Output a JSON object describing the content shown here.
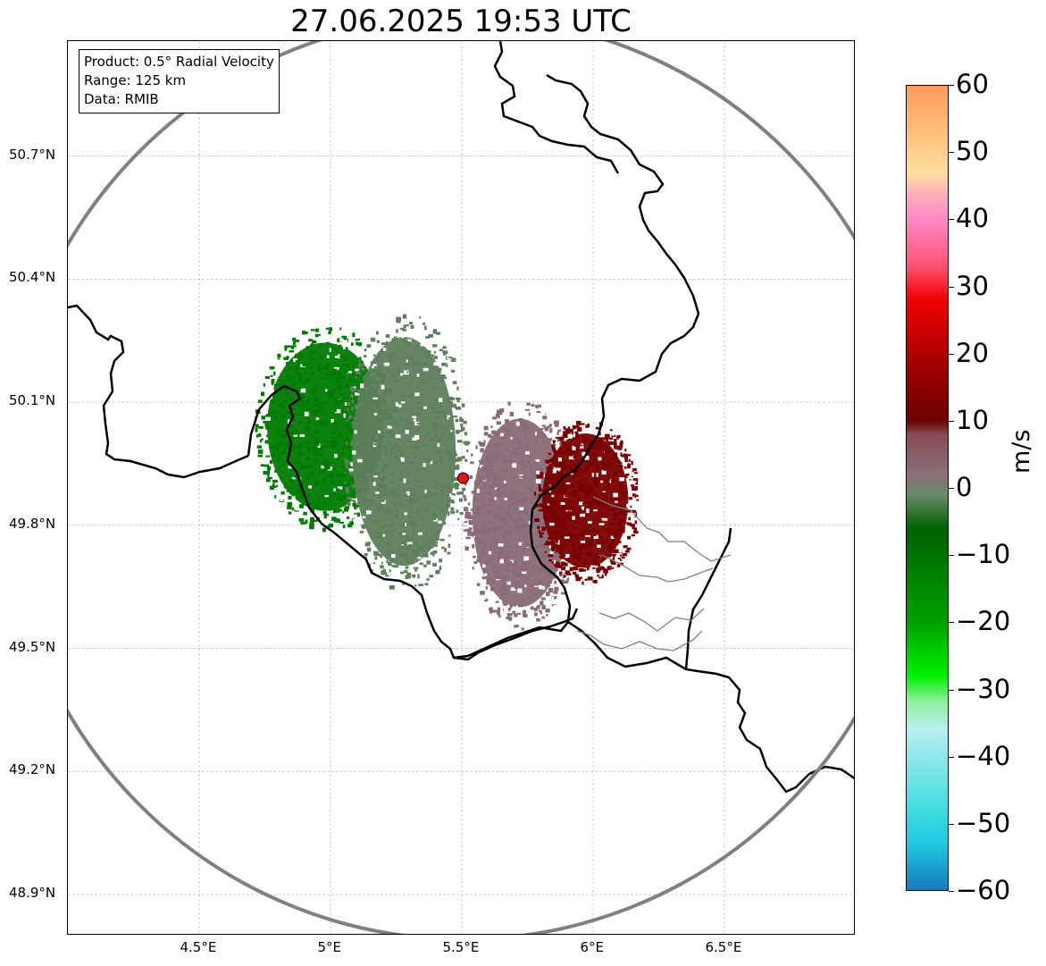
{
  "title": "27.06.2025 19:53 UTC",
  "info": {
    "product": "Product: 0.5° Radial Velocity",
    "range": "Range: 125 km",
    "data": "Data: RMIB"
  },
  "map": {
    "lon_range": [
      4.0,
      7.0
    ],
    "lat_range": [
      48.8,
      50.98
    ],
    "lat_ticks": [
      "50.7°N",
      "50.4°N",
      "50.1°N",
      "49.8°N",
      "49.5°N",
      "49.2°N",
      "48.9°N"
    ],
    "lon_ticks": [
      "4.5°E",
      "5°E",
      "5.5°E",
      "6°E",
      "6.5°E"
    ],
    "radar_site": {
      "lon": 5.505,
      "lat": 49.915
    },
    "range_ring_km": 125,
    "colors": {
      "range_ring": "#808080",
      "border": "#000000",
      "subregion": "#808080",
      "radar_marker": "#e8101a"
    },
    "echo_regions": [
      {
        "name": "strong-inbound",
        "color": "#007a00",
        "lon": 4.98,
        "lat": 50.04,
        "rlon": 0.27,
        "rlat": 0.25
      },
      {
        "name": "moderate-inbound",
        "color": "#5e7e5c",
        "lon": 5.28,
        "lat": 49.98,
        "rlon": 0.24,
        "rlat": 0.34
      },
      {
        "name": "weak-outbound",
        "color": "#8a6a78",
        "lon": 5.72,
        "lat": 49.83,
        "rlon": 0.22,
        "rlat": 0.28
      },
      {
        "name": "strong-outbound",
        "color": "#7a0000",
        "lon": 5.97,
        "lat": 49.86,
        "rlon": 0.2,
        "rlat": 0.2
      }
    ]
  },
  "colorbar": {
    "label": "m/s",
    "min": -60,
    "max": 60,
    "ticks": [
      "60",
      "50",
      "40",
      "30",
      "20",
      "10",
      "0",
      "−10",
      "−20",
      "−30",
      "−40",
      "−50",
      "−60"
    ],
    "stops": [
      {
        "v": 60,
        "c": "#ff9a5c"
      },
      {
        "v": 52,
        "c": "#ffc480"
      },
      {
        "v": 47,
        "c": "#ffe0a0"
      },
      {
        "v": 44,
        "c": "#ffb0b8"
      },
      {
        "v": 40,
        "c": "#ff88c8"
      },
      {
        "v": 33,
        "c": "#ff5070"
      },
      {
        "v": 28,
        "c": "#f00000"
      },
      {
        "v": 20,
        "c": "#b00000"
      },
      {
        "v": 10,
        "c": "#6a0000"
      },
      {
        "v": 8,
        "c": "#8a4a55"
      },
      {
        "v": 2,
        "c": "#8a7078"
      },
      {
        "v": -1,
        "c": "#6a8a6a"
      },
      {
        "v": -6,
        "c": "#006000"
      },
      {
        "v": -20,
        "c": "#00a000"
      },
      {
        "v": -28,
        "c": "#00f000"
      },
      {
        "v": -32,
        "c": "#90f0a0"
      },
      {
        "v": -36,
        "c": "#b8eef0"
      },
      {
        "v": -48,
        "c": "#40dce0"
      },
      {
        "v": -53,
        "c": "#20c8e0"
      },
      {
        "v": -60,
        "c": "#1a7ac0"
      }
    ]
  }
}
